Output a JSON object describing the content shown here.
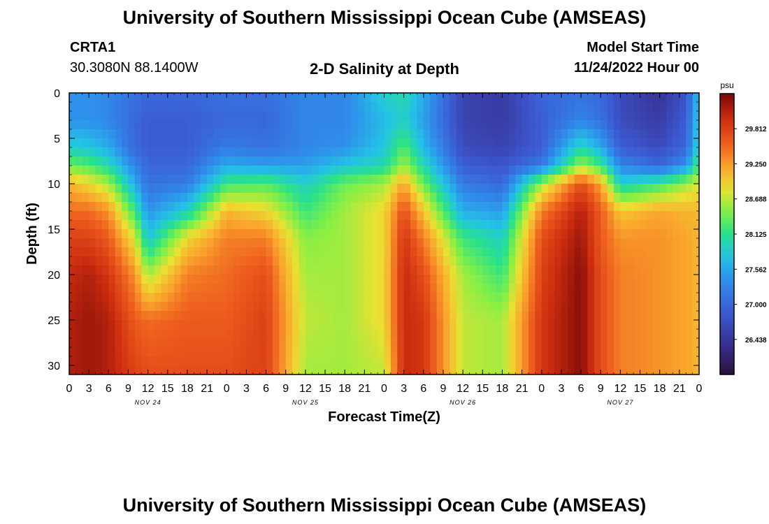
{
  "header": {
    "title": "University of Southern Mississippi Ocean Cube (AMSEAS)",
    "station_id": "CRTA1",
    "station_coords": "30.3080N  88.1400W",
    "plot_title": "2-D Salinity at Depth",
    "model_label": "Model Start Time",
    "model_time": "11/24/2022 Hour 00"
  },
  "footer": {
    "title": "University of Southern Mississippi Ocean Cube (AMSEAS)"
  },
  "chart_data": {
    "type": "heatmap",
    "title": "2-D Salinity at Depth",
    "xlabel": "Forecast Time(Z)",
    "ylabel": "Depth (ft)",
    "xlim": [
      0,
      96
    ],
    "ylim": [
      0,
      31
    ],
    "x_tick_values": [
      0,
      3,
      6,
      9,
      12,
      15,
      18,
      21,
      24,
      27,
      30,
      33,
      36,
      39,
      42,
      45,
      48,
      51,
      54,
      57,
      60,
      63,
      66,
      69,
      72,
      75,
      78,
      81,
      84,
      87,
      90,
      93,
      96
    ],
    "x_tick_labels": [
      "0",
      "3",
      "6",
      "9",
      "12",
      "15",
      "18",
      "21",
      "0",
      "3",
      "6",
      "9",
      "12",
      "15",
      "18",
      "21",
      "0",
      "3",
      "6",
      "9",
      "12",
      "15",
      "18",
      "21",
      "0",
      "3",
      "6",
      "9",
      "12",
      "15",
      "18",
      "21",
      "0"
    ],
    "date_labels": [
      {
        "label": "NOV 24",
        "at_hour": 12
      },
      {
        "label": "NOV 25",
        "at_hour": 36
      },
      {
        "label": "NOV 26",
        "at_hour": 60
      },
      {
        "label": "NOV 27",
        "at_hour": 84
      }
    ],
    "y_tick_values": [
      0,
      5,
      10,
      15,
      20,
      25,
      30
    ],
    "y_tick_labels": [
      "0",
      "5",
      "10",
      "15",
      "20",
      "25",
      "30"
    ],
    "colorbar": {
      "unit": "psu",
      "min": 25.876,
      "max": 30.374,
      "tick_values": [
        29.812,
        29.25,
        28.688,
        28.125,
        27.562,
        27.0,
        26.438
      ],
      "tick_labels": [
        "29.812",
        "29.250",
        "28.688",
        "28.125",
        "27.562",
        "27.000",
        "26.438"
      ]
    },
    "salinity_profiles": {
      "description": "Estimated salinity (psu) sampled from the heat map at selected forecast hours and depths (ft).",
      "hours": [
        0,
        3,
        6,
        10,
        12,
        18,
        24,
        30,
        36,
        42,
        48,
        51,
        54,
        60,
        66,
        72,
        78,
        81,
        84,
        90,
        94,
        96
      ],
      "depths": [
        0,
        3,
        6,
        8,
        10,
        13,
        16,
        20,
        25,
        31
      ],
      "values": [
        [
          27.4,
          27.4,
          27.9,
          28.4,
          29.1,
          29.5,
          29.8,
          30.0,
          30.1,
          30.1
        ],
        [
          27.4,
          27.4,
          27.8,
          28.3,
          28.9,
          29.5,
          29.8,
          30.1,
          30.2,
          30.2
        ],
        [
          27.3,
          27.3,
          27.6,
          28.0,
          28.6,
          29.3,
          29.6,
          29.9,
          30.1,
          30.1
        ],
        [
          27.1,
          27.0,
          27.0,
          27.3,
          27.6,
          28.2,
          28.8,
          29.3,
          29.6,
          29.8
        ],
        [
          27.0,
          26.9,
          26.9,
          27.0,
          27.1,
          27.4,
          27.8,
          28.6,
          29.5,
          29.7
        ],
        [
          27.0,
          26.9,
          26.9,
          27.0,
          27.2,
          27.9,
          28.9,
          29.4,
          29.6,
          29.7
        ],
        [
          27.1,
          27.0,
          27.2,
          27.6,
          28.2,
          29.1,
          29.4,
          29.5,
          29.6,
          29.7
        ],
        [
          27.1,
          27.0,
          27.1,
          27.5,
          28.3,
          28.9,
          29.4,
          29.7,
          29.8,
          29.8
        ],
        [
          27.3,
          27.3,
          27.3,
          27.5,
          27.9,
          28.2,
          28.5,
          28.6,
          28.7,
          28.6
        ],
        [
          27.3,
          27.3,
          27.4,
          27.8,
          28.4,
          28.6,
          28.6,
          28.6,
          28.6,
          28.6
        ],
        [
          27.9,
          27.7,
          27.8,
          28.0,
          28.6,
          28.9,
          28.9,
          28.9,
          28.9,
          28.7
        ],
        [
          28.0,
          27.9,
          28.3,
          28.6,
          29.2,
          29.7,
          29.9,
          30.0,
          30.0,
          30.0
        ],
        [
          27.6,
          27.5,
          27.7,
          28.0,
          28.4,
          29.0,
          29.4,
          29.7,
          29.9,
          29.9
        ],
        [
          26.6,
          26.6,
          26.7,
          26.9,
          27.2,
          27.6,
          28.2,
          28.6,
          28.7,
          28.7
        ],
        [
          26.5,
          26.5,
          26.6,
          26.8,
          27.0,
          27.5,
          27.9,
          28.2,
          28.6,
          28.6
        ],
        [
          27.0,
          26.9,
          26.9,
          27.2,
          28.6,
          29.4,
          29.7,
          29.8,
          29.9,
          29.9
        ],
        [
          27.1,
          27.3,
          28.0,
          28.6,
          29.7,
          30.1,
          30.2,
          30.3,
          30.3,
          30.3
        ],
        [
          27.0,
          27.1,
          27.6,
          28.2,
          29.2,
          29.6,
          29.6,
          29.7,
          29.7,
          29.7
        ],
        [
          26.7,
          26.7,
          26.9,
          27.3,
          27.9,
          29.0,
          29.3,
          29.4,
          29.4,
          29.4
        ],
        [
          26.4,
          26.5,
          26.7,
          27.0,
          28.2,
          29.2,
          29.3,
          29.3,
          29.3,
          29.3
        ],
        [
          26.8,
          26.9,
          27.0,
          27.4,
          28.6,
          29.1,
          29.2,
          29.2,
          29.2,
          29.2
        ],
        [
          27.8,
          27.9,
          28.0,
          28.3,
          28.8,
          29.1,
          29.1,
          29.1,
          29.1,
          29.1
        ]
      ]
    }
  }
}
